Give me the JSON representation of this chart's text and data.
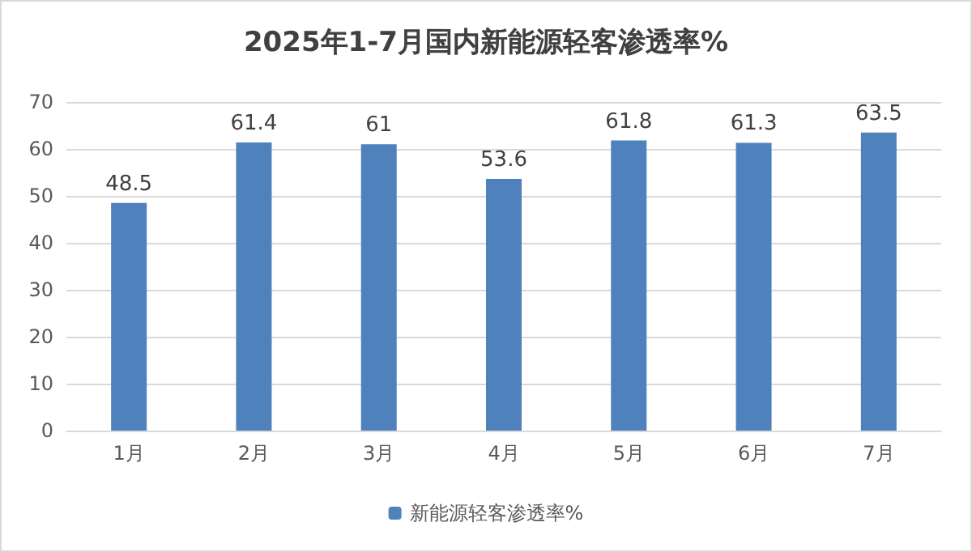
{
  "chart_data": {
    "type": "bar",
    "title": "2025年1-7月国内新能源轻客渗透率%",
    "categories": [
      "1月",
      "2月",
      "3月",
      "4月",
      "5月",
      "6月",
      "7月"
    ],
    "series": [
      {
        "name": "新能源轻客渗透率%",
        "color": "#4f81bd",
        "values": [
          48.5,
          61.4,
          61,
          53.6,
          61.8,
          61.3,
          63.5
        ]
      }
    ],
    "ylim": [
      0,
      70
    ],
    "yticks": [
      0,
      10,
      20,
      30,
      40,
      50,
      60,
      70
    ],
    "grid": "y",
    "legend": "bottom",
    "data_labels": true
  }
}
